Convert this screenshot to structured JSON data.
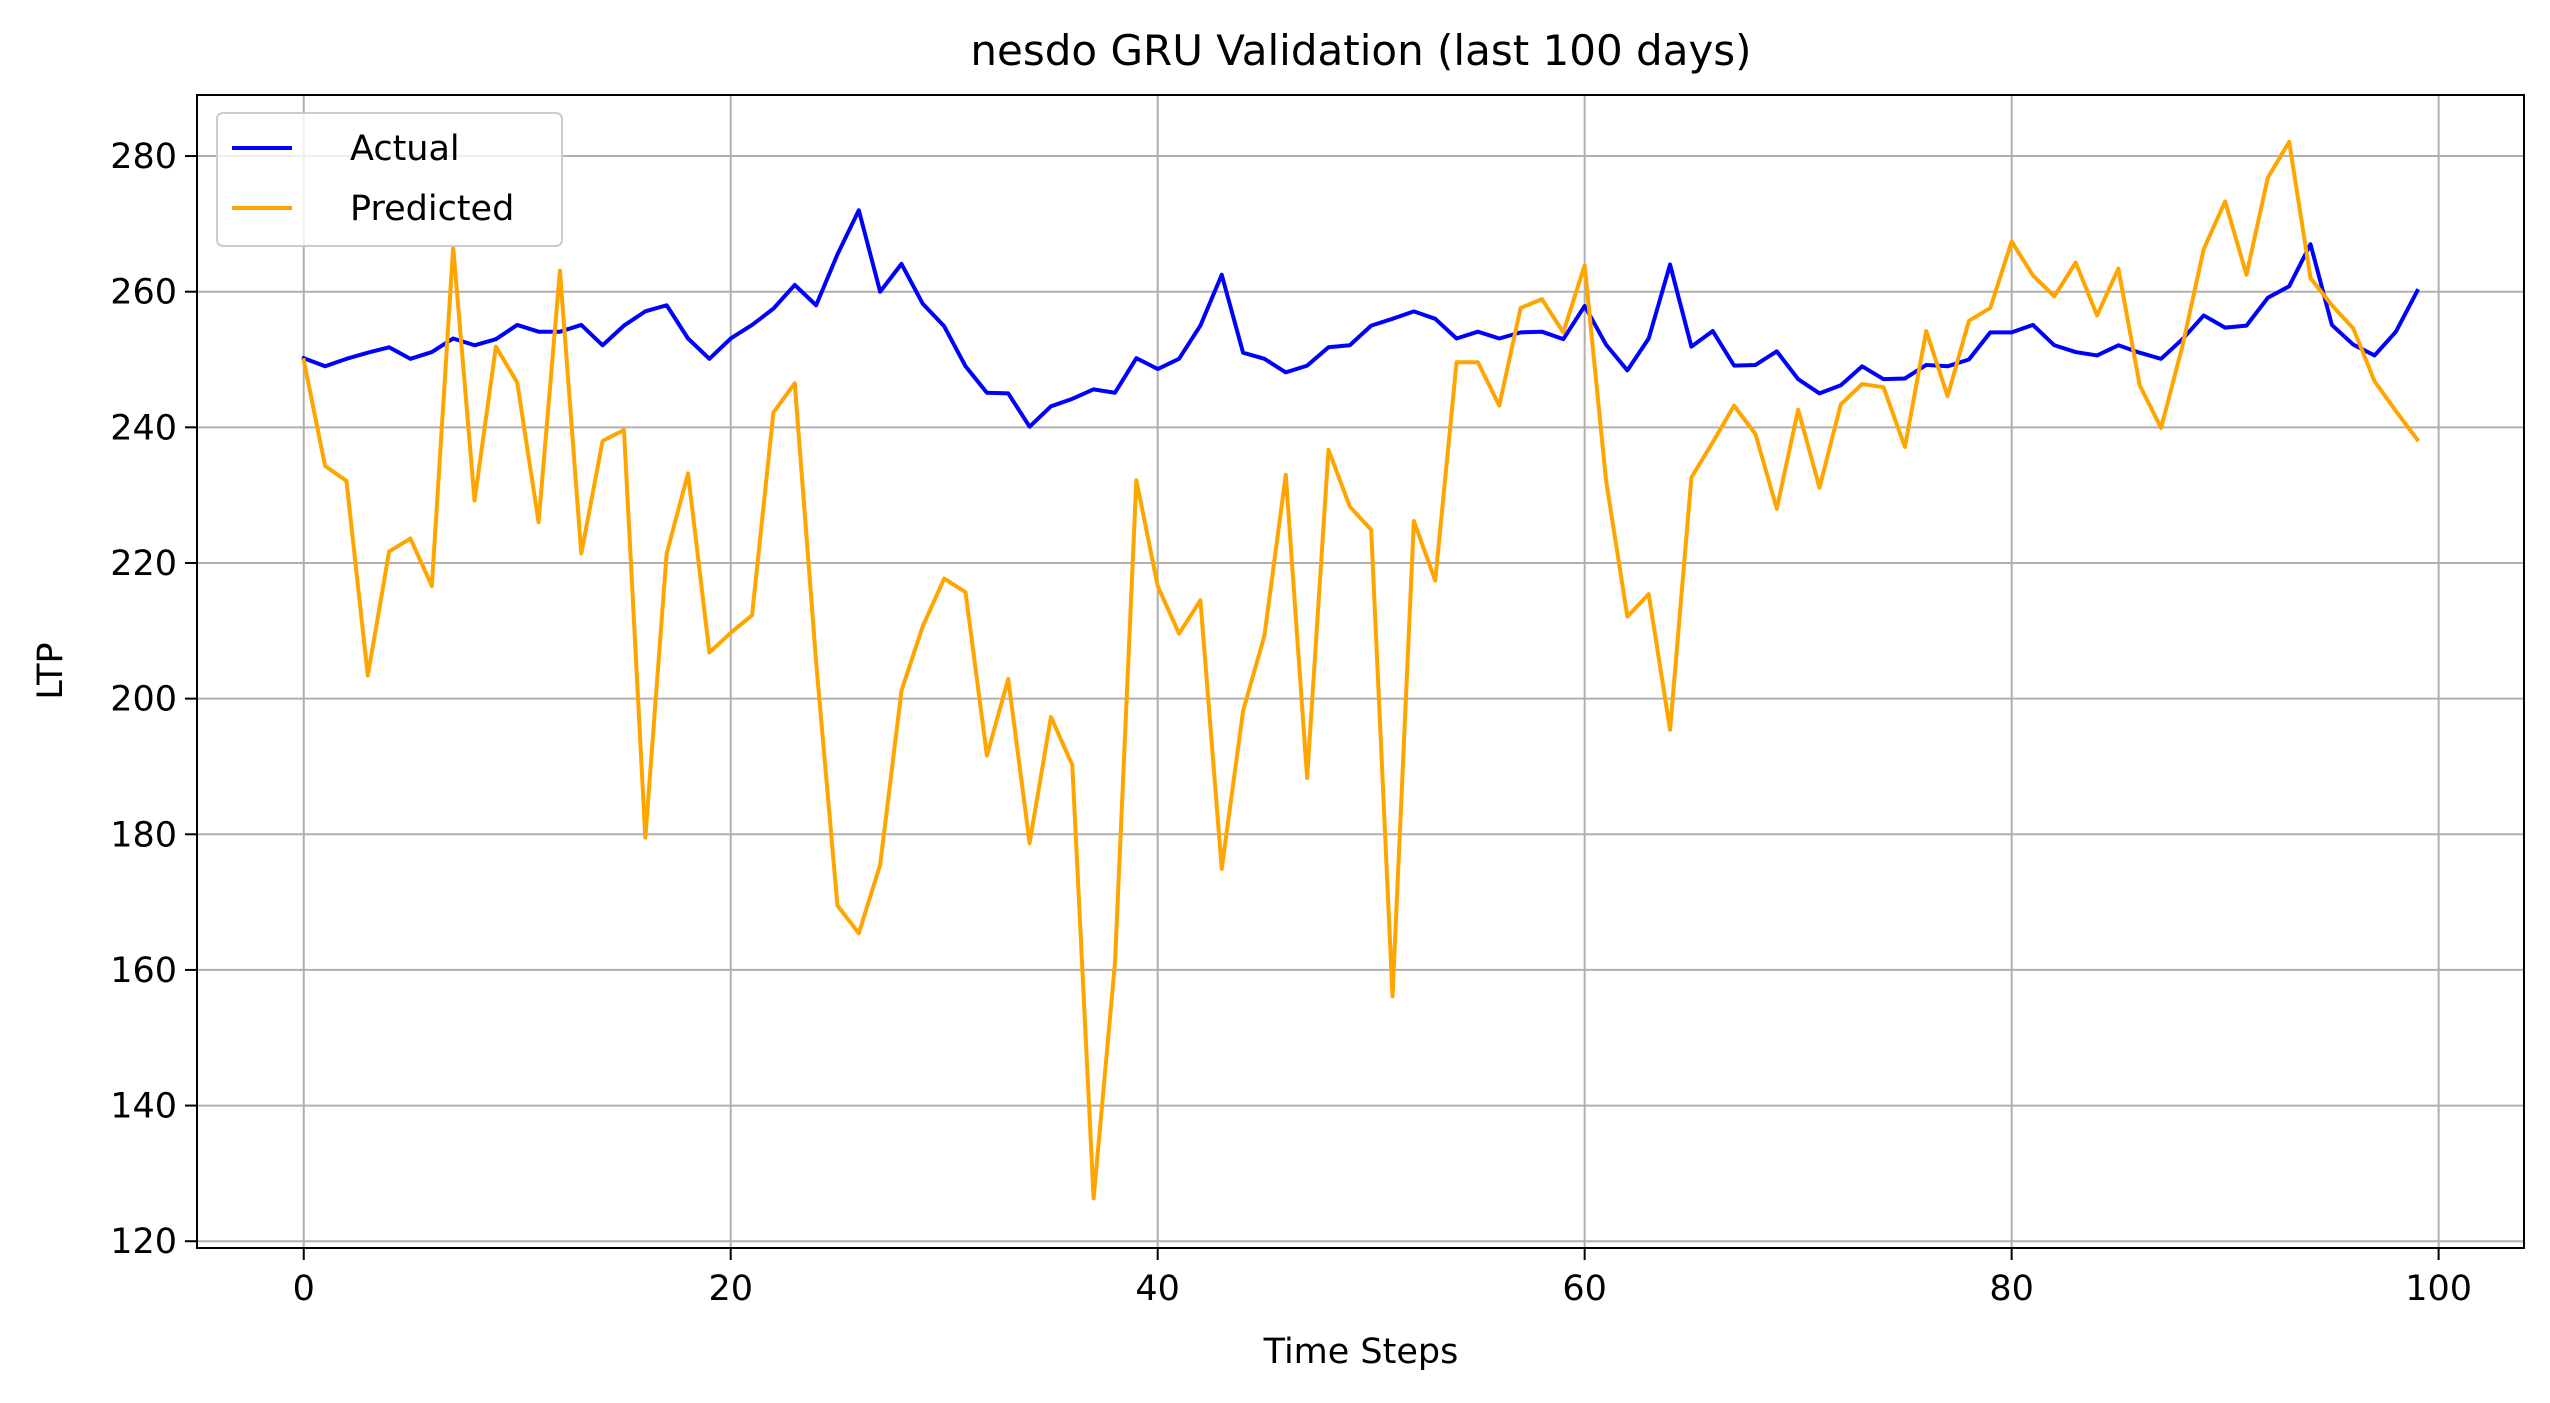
{
  "chart_data": {
    "type": "line",
    "title": "nesdo GRU Validation (last 100 days)",
    "xlabel": "Time Steps",
    "ylabel": "LTP",
    "xlim": [
      -5,
      104
    ],
    "ylim": [
      119,
      289
    ],
    "xticks": [
      0,
      20,
      40,
      60,
      80,
      100
    ],
    "yticks": [
      120,
      140,
      160,
      180,
      200,
      220,
      240,
      260,
      280
    ],
    "grid": true,
    "legend_position": "top-left",
    "x": [
      0,
      1,
      2,
      3,
      4,
      5,
      6,
      7,
      8,
      9,
      10,
      11,
      12,
      13,
      14,
      15,
      16,
      17,
      18,
      19,
      20,
      21,
      22,
      23,
      24,
      25,
      26,
      27,
      28,
      29,
      30,
      31,
      32,
      33,
      34,
      35,
      36,
      37,
      38,
      39,
      40,
      41,
      42,
      43,
      44,
      45,
      46,
      47,
      48,
      49,
      50,
      51,
      52,
      53,
      54,
      55,
      56,
      57,
      58,
      59,
      60,
      61,
      62,
      63,
      64,
      65,
      66,
      67,
      68,
      69,
      70,
      71,
      72,
      73,
      74,
      75,
      76,
      77,
      78,
      79,
      80,
      81,
      82,
      83,
      84,
      85,
      86,
      87,
      88,
      89,
      90,
      91,
      92,
      93,
      94,
      95,
      96,
      97,
      98,
      99
    ],
    "series": [
      {
        "name": "Actual",
        "color": "#0000ff",
        "values": [
          250.2,
          249.0,
          250.1,
          251.0,
          251.8,
          250.1,
          251.1,
          253.1,
          252.1,
          253.0,
          255.1,
          254.1,
          254.1,
          255.1,
          252.1,
          255.0,
          257.1,
          258.0,
          253.1,
          250.1,
          253.1,
          255.1,
          257.5,
          261.0,
          258.0,
          265.5,
          272.0,
          260.0,
          264.1,
          258.2,
          254.9,
          249.0,
          245.1,
          245.0,
          240.1,
          243.1,
          244.2,
          245.6,
          245.1,
          250.2,
          248.6,
          250.1,
          255.0,
          262.5,
          251.0,
          250.1,
          248.1,
          249.1,
          251.8,
          252.1,
          255.0,
          256.0,
          257.1,
          256.0,
          253.1,
          254.1,
          253.1,
          254.0,
          254.1,
          253.0,
          257.9,
          252.2,
          248.4,
          253.1,
          264.0,
          251.9,
          254.2,
          249.1,
          249.2,
          251.2,
          247.1,
          245.0,
          246.2,
          249.0,
          247.1,
          247.2,
          249.2,
          249.0,
          250.0,
          254.0,
          254.0,
          255.1,
          252.1,
          251.1,
          250.6,
          252.1,
          251.0,
          250.1,
          253.0,
          256.5,
          254.7,
          255.0,
          259.1,
          260.8,
          267.0,
          255.1,
          252.2,
          250.6,
          254.1,
          260.1
        ]
      },
      {
        "name": "Predicted",
        "color": "#ffa500",
        "values": [
          249.9,
          234.3,
          232.1,
          203.4,
          221.7,
          223.6,
          216.6,
          266.6,
          229.2,
          251.9,
          246.6,
          226.0,
          263.1,
          221.4,
          238.0,
          239.6,
          179.5,
          221.4,
          233.2,
          206.8,
          209.7,
          212.3,
          242.2,
          246.5,
          205.4,
          169.5,
          165.4,
          175.5,
          201.2,
          210.7,
          217.7,
          215.7,
          191.6,
          202.9,
          178.7,
          197.3,
          190.2,
          126.3,
          161.1,
          232.2,
          216.6,
          209.6,
          214.5,
          174.9,
          198.2,
          209.3,
          233.0,
          188.3,
          236.7,
          228.3,
          224.9,
          156.1,
          226.2,
          217.4,
          249.6,
          249.6,
          243.2,
          257.6,
          258.9,
          254.0,
          263.9,
          232.2,
          212.1,
          215.4,
          195.4,
          232.6,
          237.8,
          243.2,
          239.0,
          228.0,
          242.6,
          231.1,
          243.4,
          246.4,
          245.9,
          237.1,
          254.2,
          244.6,
          255.7,
          257.6,
          267.4,
          262.4,
          259.3,
          264.3,
          256.5,
          263.4,
          246.2,
          239.9,
          252.0,
          266.3,
          273.3,
          262.5,
          276.8,
          282.1,
          262.0,
          258.0,
          254.6,
          246.8,
          242.4,
          238.2
        ]
      }
    ]
  }
}
